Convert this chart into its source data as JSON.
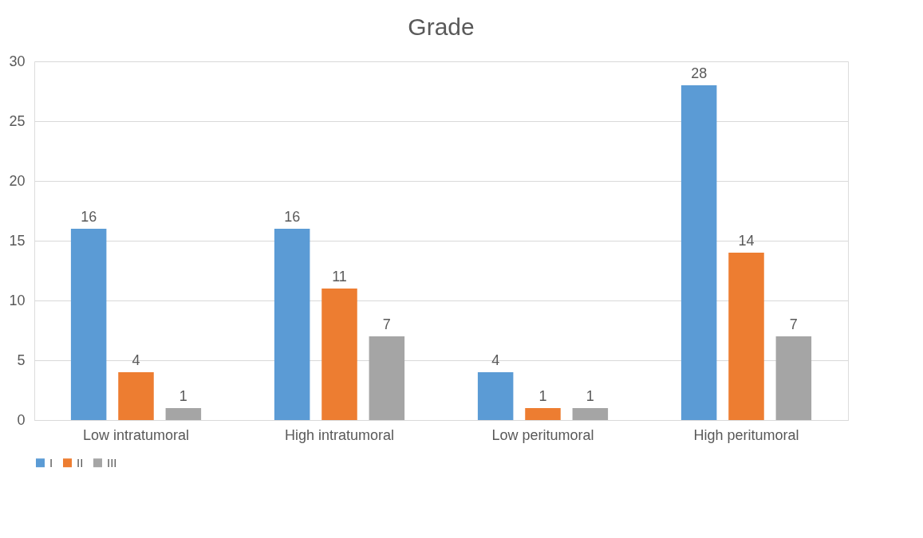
{
  "chart_data": {
    "type": "bar",
    "title": "Grade",
    "categories": [
      "Low intratumoral",
      "High intratumoral",
      "Low peritumoral",
      "High peritumoral"
    ],
    "series": [
      {
        "name": "I",
        "color": "#5b9bd5",
        "values": [
          16,
          16,
          4,
          28
        ]
      },
      {
        "name": "II",
        "color": "#ed7d31",
        "values": [
          4,
          11,
          1,
          14
        ]
      },
      {
        "name": "III",
        "color": "#a5a5a5",
        "values": [
          1,
          7,
          1,
          7
        ]
      }
    ],
    "ylim": [
      0,
      30
    ],
    "yticks": [
      0,
      5,
      10,
      15,
      20,
      25,
      30
    ],
    "grid": "y",
    "legend": "bottom",
    "data_labels": true
  }
}
